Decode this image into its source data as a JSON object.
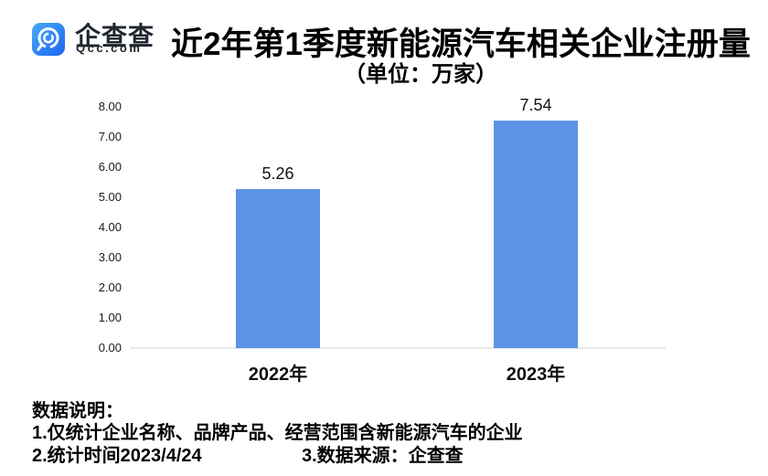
{
  "brand": {
    "name": "企查查",
    "domain": "Qcc.com"
  },
  "title": "近2年第1季度新能源汽车相关企业注册量",
  "subtitle": "（单位：万家）",
  "chart_data": {
    "type": "bar",
    "categories": [
      "2022年",
      "2023年"
    ],
    "values": [
      5.26,
      7.54
    ],
    "value_labels": [
      "5.26",
      "7.54"
    ],
    "title": "近2年第1季度新能源汽车相关企业注册量",
    "unit": "万家",
    "xlabel": "",
    "ylabel": "",
    "ylim": [
      0,
      8
    ],
    "ytick_step": 1,
    "ytick_labels": [
      "0.00",
      "1.00",
      "2.00",
      "3.00",
      "4.00",
      "5.00",
      "6.00",
      "7.00",
      "8.00"
    ],
    "grid": false,
    "legend": false,
    "bar_color": "#5C93E5"
  },
  "notes": {
    "heading": "数据说明：",
    "line1": "1.仅统计企业名称、品牌产品、经营范围含新能源汽车的企业",
    "line2_left": "2.统计时间2023/4/24",
    "line2_right": "3.数据来源：企查查"
  },
  "colors": {
    "bar": "#5C93E5",
    "axis_line": "#e8e8e8",
    "logo_gradient_start": "#47AAF9",
    "logo_gradient_end": "#1C66F0",
    "brand_text": "#20252e"
  }
}
